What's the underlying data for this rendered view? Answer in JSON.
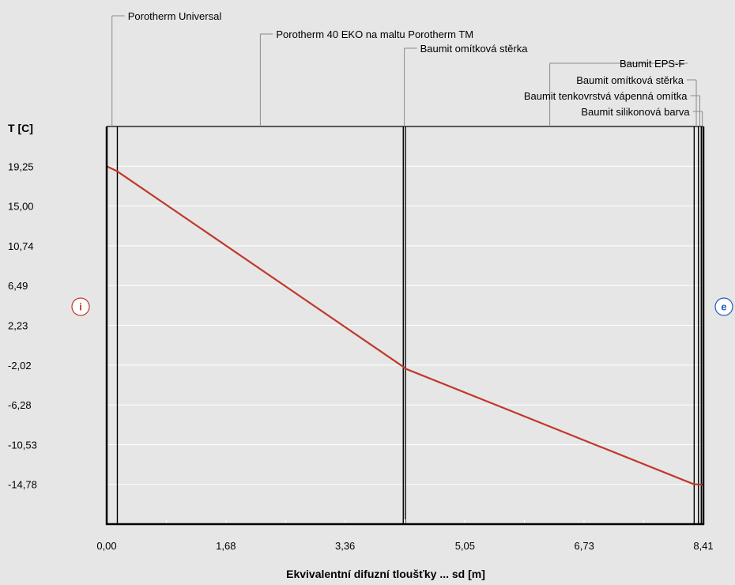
{
  "chart_data": {
    "type": "line",
    "title": "",
    "ylabel": "T [C]",
    "xlabel": "Ekvivalentní difuzní tloušťky ... sd [m]",
    "y_ticks": [
      "19,25",
      "15,00",
      "10,74",
      "6,49",
      "2,23",
      "-2,02",
      "-6,28",
      "-10,53",
      "-14,78"
    ],
    "y_tick_values": [
      19.25,
      15.0,
      10.74,
      6.49,
      2.23,
      -2.02,
      -6.28,
      -10.53,
      -14.78
    ],
    "x_ticks": [
      "0,00",
      "1,68",
      "3,36",
      "5,05",
      "6,73",
      "8,41"
    ],
    "x_tick_values": [
      0.0,
      1.68,
      3.36,
      5.05,
      6.73,
      8.41
    ],
    "xlim": [
      0,
      8.41
    ],
    "ylim": [
      -19.03,
      23.5
    ],
    "grid": "horizontal",
    "layer_boundaries": [
      0.0,
      0.15,
      4.18,
      4.21,
      8.28,
      8.34,
      8.38,
      8.41
    ],
    "layers": [
      "Porotherm Universal",
      "Porotherm 40 EKO na maltu Porotherm TM",
      "Baumit omítková stěrka",
      "Baumit EPS-F",
      "Baumit omítková stěrka",
      "Baumit tenkovrstvá vápenná omítka",
      "Baumit silikonová barva"
    ],
    "series": [
      {
        "color": "#c0392b",
        "x": [
          0.0,
          0.15,
          4.18,
          4.21,
          8.28,
          8.34,
          8.38,
          8.41
        ],
        "y": [
          19.25,
          18.7,
          -2.2,
          -2.4,
          -14.78,
          -14.78,
          -14.79,
          -14.8
        ]
      }
    ],
    "markers": {
      "interior": {
        "label": "i",
        "color": "#c0392b"
      },
      "exterior": {
        "label": "e",
        "color": "#1f5fbf"
      }
    }
  }
}
